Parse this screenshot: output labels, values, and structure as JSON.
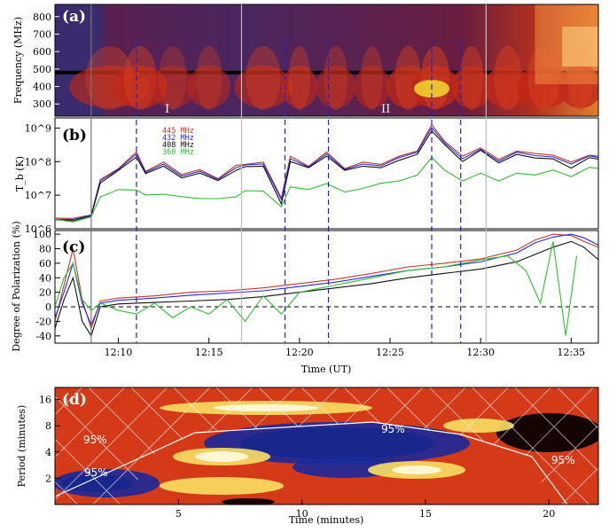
{
  "figure": {
    "panel_labels": [
      "(a)",
      "(b)",
      "(c)",
      "(d)"
    ],
    "region_labels": [
      "I",
      "II"
    ]
  },
  "colors": {
    "red": "#c0392b",
    "blue": "#2a2ad0",
    "black": "#111111",
    "green": "#33bb33",
    "dashed_vline": "#2222cc",
    "solid_vline": "#555555"
  },
  "chart_data": [
    {
      "panel": "(a)",
      "type": "heatmap",
      "ylabel": "Frequency (MHz)",
      "yticks": [
        300,
        400,
        500,
        600,
        700,
        800
      ],
      "ylim": [
        230,
        870
      ],
      "xlim_minutes": [
        6.5,
        36.5
      ],
      "colormap": "hot (dark purple background, red to yellow intensity)",
      "horizontal_band_mhz": 480
    },
    {
      "panel": "(b)",
      "type": "line",
      "ylabel": "T_b (K)",
      "yscale": "log",
      "yticks": [
        "10^6",
        "10^7",
        "10^8",
        "10^9"
      ],
      "ylim": [
        1000000.0,
        2000000000.0
      ],
      "xlim_minutes": [
        6.5,
        36.5
      ],
      "legend_location": "top-left",
      "series": [
        {
          "name": "445 MHz",
          "color": "#c0392b",
          "x": [
            6.5,
            7.5,
            8.5,
            9.0,
            10.0,
            11.0,
            11.5,
            12.5,
            13.5,
            14.5,
            15.5,
            16.5,
            17.0,
            18.0,
            19.0,
            19.5,
            20.5,
            21.5,
            22.5,
            23.5,
            24.5,
            25.5,
            26.5,
            27.3,
            28.0,
            29.0,
            30.0,
            31.0,
            32.0,
            33.0,
            34.0,
            35.0,
            36.0,
            36.5
          ],
          "y": [
            2000000.0,
            2100000.0,
            2500000.0,
            30000000.0,
            60000000.0,
            200000000.0,
            50000000.0,
            100000000.0,
            40000000.0,
            60000000.0,
            30000000.0,
            80000000.0,
            80000000.0,
            100000000.0,
            8000000.0,
            150000000.0,
            70000000.0,
            200000000.0,
            60000000.0,
            100000000.0,
            80000000.0,
            150000000.0,
            200000000.0,
            1300000000.0,
            400000000.0,
            150000000.0,
            250000000.0,
            120000000.0,
            200000000.0,
            180000000.0,
            150000000.0,
            100000000.0,
            150000000.0,
            150000000.0
          ]
        },
        {
          "name": "432 MHz",
          "color": "#2a2ad0",
          "x": [
            6.5,
            7.5,
            8.5,
            9.0,
            10.0,
            11.0,
            11.5,
            12.5,
            13.5,
            14.5,
            15.5,
            16.5,
            17.0,
            18.0,
            19.0,
            19.5,
            20.5,
            21.5,
            22.5,
            23.5,
            24.5,
            25.5,
            26.5,
            27.3,
            28.0,
            29.0,
            30.0,
            31.0,
            32.0,
            33.0,
            34.0,
            35.0,
            36.0,
            36.5
          ],
          "y": [
            1800000.0,
            2000000.0,
            2400000.0,
            28000000.0,
            55000000.0,
            180000000.0,
            45000000.0,
            90000000.0,
            35000000.0,
            55000000.0,
            28000000.0,
            70000000.0,
            75000000.0,
            90000000.0,
            7000000.0,
            130000000.0,
            65000000.0,
            180000000.0,
            55000000.0,
            90000000.0,
            70000000.0,
            140000000.0,
            180000000.0,
            1100000000.0,
            350000000.0,
            130000000.0,
            220000000.0,
            110000000.0,
            180000000.0,
            160000000.0,
            130000000.0,
            90000000.0,
            140000000.0,
            140000000.0
          ]
        },
        {
          "name": "408 MHz",
          "color": "#111111",
          "x": [
            6.5,
            7.5,
            8.5,
            9.0,
            10.0,
            11.0,
            11.5,
            12.5,
            13.5,
            14.5,
            15.5,
            16.5,
            17.0,
            18.0,
            19.0,
            19.5,
            20.5,
            21.5,
            22.5,
            23.5,
            24.5,
            25.5,
            26.5,
            27.3,
            28.0,
            29.0,
            30.0,
            31.0,
            32.0,
            33.0,
            34.0,
            35.0,
            36.0,
            36.5
          ],
          "y": [
            1700000.0,
            1900000.0,
            2200000.0,
            25000000.0,
            50000000.0,
            150000000.0,
            40000000.0,
            80000000.0,
            30000000.0,
            50000000.0,
            25000000.0,
            60000000.0,
            65000000.0,
            80000000.0,
            5000000.0,
            110000000.0,
            60000000.0,
            160000000.0,
            50000000.0,
            80000000.0,
            60000000.0,
            120000000.0,
            150000000.0,
            900000000.0,
            300000000.0,
            110000000.0,
            200000000.0,
            100000000.0,
            150000000.0,
            140000000.0,
            110000000.0,
            70000000.0,
            120000000.0,
            130000000.0
          ]
        },
        {
          "name": "360 MHz",
          "color": "#33bb33",
          "x": [
            6.5,
            7.5,
            8.5,
            9.0,
            10.0,
            11.0,
            11.5,
            12.5,
            13.5,
            14.5,
            15.5,
            16.5,
            17.0,
            18.0,
            19.0,
            19.5,
            20.5,
            21.5,
            22.5,
            23.5,
            24.5,
            25.5,
            26.5,
            27.3,
            28.0,
            29.0,
            30.0,
            31.0,
            32.0,
            33.0,
            34.0,
            35.0,
            36.0,
            36.5
          ],
          "y": [
            1700000.0,
            1800000.0,
            2000000.0,
            10000000.0,
            13000000.0,
            16000000.0,
            9000000.0,
            12000000.0,
            8000000.0,
            9000000.0,
            7000000.0,
            10000000.0,
            12000000.0,
            15000000.0,
            4000000.0,
            20000000.0,
            13000000.0,
            25000000.0,
            11000000.0,
            18000000.0,
            20000000.0,
            30000000.0,
            35000000.0,
            150000000.0,
            50000000.0,
            30000000.0,
            40000000.0,
            30000000.0,
            40000000.0,
            45000000.0,
            50000000.0,
            40000000.0,
            60000000.0,
            70000000.0
          ]
        }
      ],
      "legend": [
        "445 MHz",
        "432 MHz",
        "408 MHz",
        "360 MHz"
      ]
    },
    {
      "panel": "(c)",
      "type": "line",
      "ylabel": "Degree of Polarization (%)",
      "xlabel": "Time (UT)",
      "yticks": [
        -40,
        -20,
        0,
        20,
        40,
        60,
        80,
        100
      ],
      "ylim": [
        -50,
        105
      ],
      "xticks": [
        "12:10",
        "12:15",
        "12:20",
        "12:25",
        "12:30",
        "12:35"
      ],
      "xtick_minutes": [
        10,
        15,
        20,
        25,
        30,
        35
      ],
      "xlim_minutes": [
        6.5,
        36.5
      ],
      "zero_line": "dashed",
      "series": [
        {
          "name": "445 MHz",
          "color": "#c0392b",
          "x": [
            6.5,
            7.0,
            7.5,
            8.0,
            8.5,
            9.0,
            10.0,
            12.0,
            14.0,
            16.0,
            18.0,
            20.0,
            22.0,
            24.0,
            26.0,
            28.0,
            30.0,
            32.0,
            33.0,
            34.0,
            35.0,
            35.7,
            36.5
          ],
          "y": [
            -20,
            30,
            80,
            10,
            -30,
            8,
            12,
            15,
            20,
            22,
            26,
            32,
            38,
            46,
            55,
            60,
            66,
            78,
            92,
            100,
            98,
            90,
            82
          ]
        },
        {
          "name": "432 MHz",
          "color": "#2a2ad0",
          "x": [
            6.5,
            7.0,
            7.5,
            8.0,
            8.5,
            9.0,
            10.0,
            12.0,
            14.0,
            16.0,
            18.0,
            20.0,
            22.0,
            24.0,
            26.0,
            28.0,
            30.0,
            32.0,
            33.0,
            34.0,
            35.0,
            35.7,
            36.5
          ],
          "y": [
            -15,
            20,
            60,
            5,
            -25,
            5,
            9,
            12,
            16,
            19,
            22,
            28,
            34,
            42,
            50,
            55,
            62,
            74,
            88,
            96,
            100,
            95,
            85
          ]
        },
        {
          "name": "408 MHz",
          "color": "#111111",
          "x": [
            6.5,
            7.0,
            7.5,
            8.0,
            8.5,
            9.0,
            10.0,
            12.0,
            14.0,
            16.0,
            18.0,
            20.0,
            22.0,
            24.0,
            26.0,
            28.0,
            30.0,
            32.0,
            33.0,
            34.0,
            35.0,
            35.7,
            36.5
          ],
          "y": [
            -30,
            10,
            40,
            -20,
            -40,
            0,
            4,
            6,
            8,
            10,
            14,
            20,
            26,
            32,
            40,
            46,
            52,
            62,
            72,
            82,
            90,
            82,
            65
          ]
        },
        {
          "name": "360 MHz",
          "color": "#33bb33",
          "x": [
            6.5,
            7.0,
            7.5,
            8.0,
            8.5,
            9.0,
            10.0,
            11.0,
            12.0,
            13.0,
            14.0,
            15.0,
            16.0,
            17.0,
            18.0,
            19.0,
            20.0,
            22.0,
            24.0,
            26.0,
            28.0,
            30.0,
            31.5,
            32.5,
            33.3,
            34.0,
            34.7,
            35.3
          ],
          "y": [
            0,
            40,
            60,
            10,
            -5,
            5,
            -5,
            -10,
            5,
            -15,
            0,
            -10,
            10,
            -20,
            15,
            -10,
            20,
            30,
            40,
            50,
            55,
            65,
            70,
            50,
            5,
            90,
            -40,
            70
          ]
        }
      ]
    },
    {
      "panel": "(d)",
      "type": "heatmap",
      "ylabel": "Period (minutes)",
      "xlabel": "Time (minutes)",
      "yticks": [
        2,
        4,
        8,
        16
      ],
      "yscale": "log",
      "xticks": [
        5,
        10,
        15,
        20
      ],
      "xlim": [
        0,
        22
      ],
      "colormap": "wavelet power (black/blue low to yellow/white high)",
      "contour_labels": [
        "95%",
        "95%",
        "95%",
        "95%"
      ],
      "cone_of_influence": "hatched"
    }
  ],
  "vertical_markers": {
    "solid_minutes": [
      8.5,
      16.8,
      30.3
    ],
    "dashed_minutes": [
      11.0,
      19.2,
      21.6,
      27.3,
      28.9
    ]
  }
}
